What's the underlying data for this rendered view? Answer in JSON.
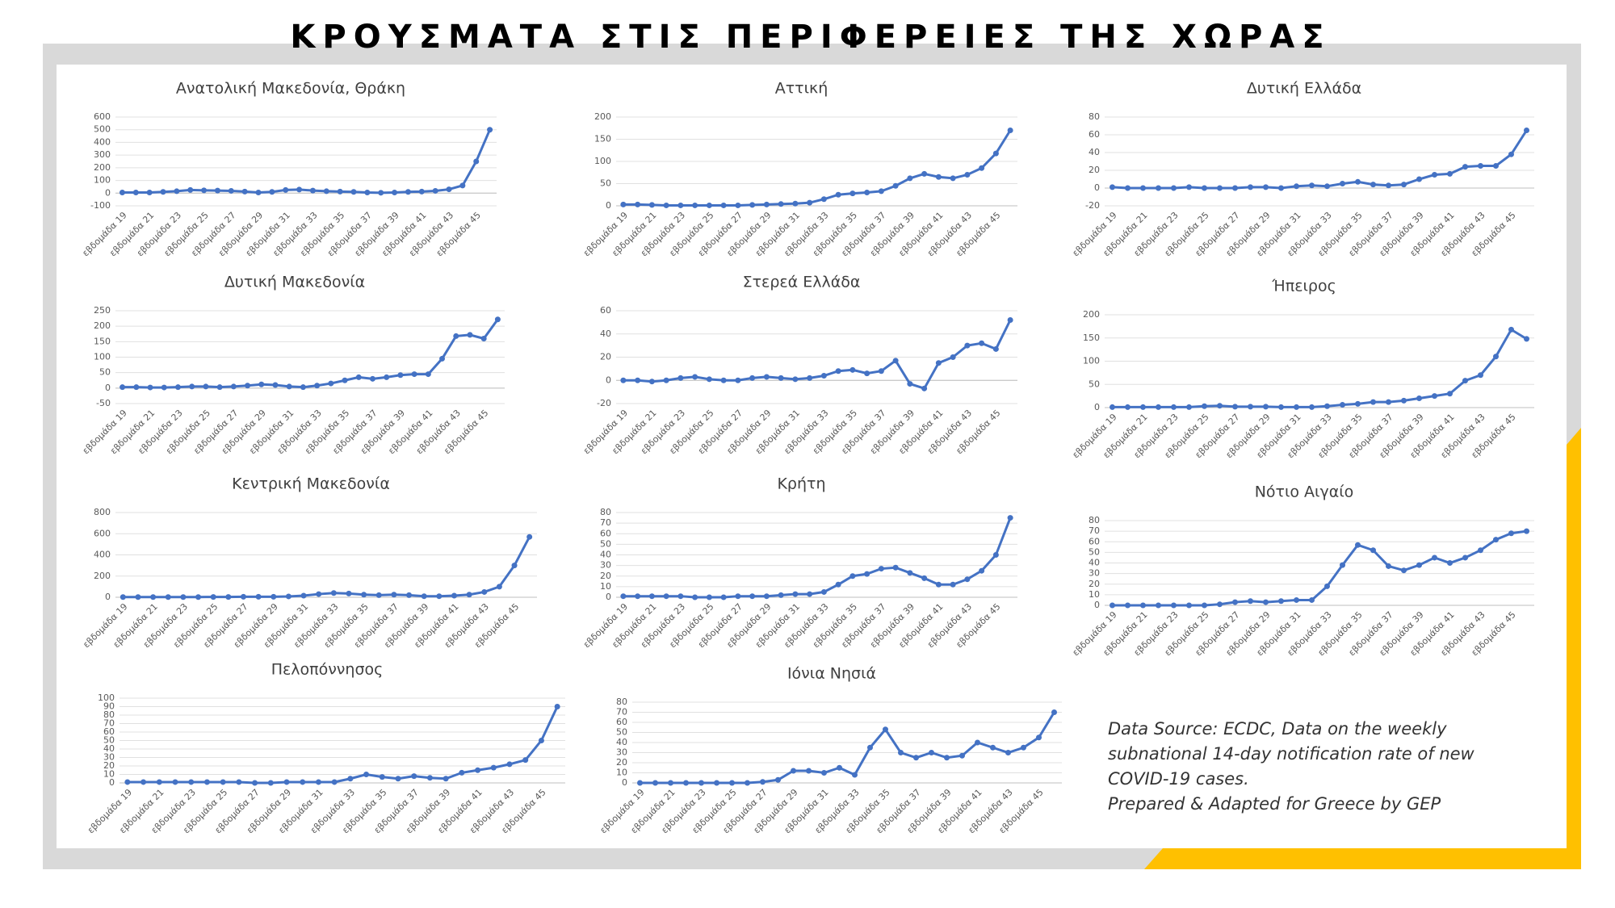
{
  "title": "ΚΡΟΥΣΜΑΤΑ ΣΤΙΣ ΠΕΡΙΦΕΡΕΙΕΣ ΤΗΣ ΧΩΡΑΣ",
  "note": [
    "Data Source: ECDC, Data on the weekly",
    "subnational 14-day notification rate of new",
    "COVID-19 cases.",
    "Prepared & Adapted for Greece by GEP"
  ],
  "chart_data": [
    {
      "type": "line",
      "title": "Ανατολική Μακεδονία, Θράκη",
      "color": "#4472c4",
      "grid": true,
      "categories": [
        "εβδομάδα 19",
        null,
        "εβδομάδα 21",
        null,
        "εβδομάδα 23",
        null,
        "εβδομάδα 25",
        null,
        "εβδομάδα 27",
        null,
        "εβδομάδα 29",
        null,
        "εβδομάδα 31",
        null,
        "εβδομάδα 33",
        null,
        "εβδομάδα 35",
        null,
        "εβδομάδα 37",
        null,
        "εβδομάδα 39",
        null,
        "εβδομάδα 41",
        null,
        "εβδομάδα 43",
        null,
        "εβδομάδα 45",
        null
      ],
      "values": [
        5,
        5,
        5,
        10,
        15,
        25,
        22,
        20,
        18,
        12,
        5,
        10,
        25,
        28,
        20,
        15,
        12,
        10,
        5,
        3,
        5,
        10,
        12,
        18,
        30,
        60,
        250,
        500
      ],
      "ylim": [
        -100,
        600
      ],
      "yticks": [
        -100,
        0,
        100,
        200,
        300,
        400,
        500,
        600
      ]
    },
    {
      "type": "line",
      "title": "Αττική",
      "color": "#4472c4",
      "grid": true,
      "categories": [
        "εβδομάδα 19",
        null,
        "εβδομάδα 21",
        null,
        "εβδομάδα 23",
        null,
        "εβδομάδα 25",
        null,
        "εβδομάδα 27",
        null,
        "εβδομάδα 29",
        null,
        "εβδομάδα 31",
        null,
        "εβδομάδα 33",
        null,
        "εβδομάδα 35",
        null,
        "εβδομάδα 37",
        null,
        "εβδομάδα 39",
        null,
        "εβδομάδα 41",
        null,
        "εβδομάδα 43",
        null,
        "εβδομάδα 45",
        null
      ],
      "values": [
        3,
        3,
        2,
        1,
        1,
        1,
        1,
        1,
        1,
        2,
        3,
        4,
        5,
        7,
        15,
        25,
        28,
        30,
        33,
        45,
        62,
        72,
        65,
        62,
        70,
        85,
        118,
        170
      ],
      "ylim": [
        0,
        200
      ],
      "yticks": [
        0,
        50,
        100,
        150,
        200
      ]
    },
    {
      "type": "line",
      "title": "Δυτική Ελλάδα",
      "color": "#4472c4",
      "grid": true,
      "categories": [
        "εβδομάδα 19",
        null,
        "εβδομάδα 21",
        null,
        "εβδομάδα 23",
        null,
        "εβδομάδα 25",
        null,
        "εβδομάδα 27",
        null,
        "εβδομάδα 29",
        null,
        "εβδομάδα 31",
        null,
        "εβδομάδα 33",
        null,
        "εβδομάδα 35",
        null,
        "εβδομάδα 37",
        null,
        "εβδομάδα 39",
        null,
        "εβδομάδα 41",
        null,
        "εβδομάδα 43",
        null,
        "εβδομάδα 45",
        null
      ],
      "values": [
        1,
        0,
        0,
        0,
        0,
        1,
        0,
        0,
        0,
        1,
        1,
        0,
        2,
        3,
        2,
        5,
        7,
        4,
        3,
        4,
        10,
        15,
        16,
        24,
        25,
        25,
        38,
        65
      ],
      "ylim": [
        -20,
        80
      ],
      "yticks": [
        -20,
        0,
        20,
        40,
        60,
        80
      ]
    },
    {
      "type": "line",
      "title": "Δυτική Μακεδονία",
      "color": "#4472c4",
      "grid": true,
      "categories": [
        "εβδομάδα 19",
        null,
        "εβδομάδα 21",
        null,
        "εβδομάδα 23",
        null,
        "εβδομάδα 25",
        null,
        "εβδομάδα 27",
        null,
        "εβδομάδα 29",
        null,
        "εβδομάδα 31",
        null,
        "εβδομάδα 33",
        null,
        "εβδομάδα 35",
        null,
        "εβδομάδα 37",
        null,
        "εβδομάδα 39",
        null,
        "εβδομάδα 41",
        null,
        "εβδομάδα 43",
        null,
        "εβδομάδα 45",
        null
      ],
      "values": [
        3,
        3,
        2,
        2,
        3,
        5,
        5,
        3,
        5,
        8,
        12,
        10,
        5,
        3,
        8,
        15,
        25,
        35,
        30,
        35,
        42,
        45,
        45,
        95,
        168,
        172,
        160,
        222
      ],
      "ylim": [
        -50,
        250
      ],
      "yticks": [
        -50,
        0,
        50,
        100,
        150,
        200,
        250
      ]
    },
    {
      "type": "line",
      "title": "Στερεά Ελλάδα",
      "color": "#4472c4",
      "grid": true,
      "categories": [
        "εβδομάδα 19",
        null,
        "εβδομάδα 21",
        null,
        "εβδομάδα 23",
        null,
        "εβδομάδα 25",
        null,
        "εβδομάδα 27",
        null,
        "εβδομάδα 29",
        null,
        "εβδομάδα 31",
        null,
        "εβδομάδα 33",
        null,
        "εβδομάδα 35",
        null,
        "εβδομάδα 37",
        null,
        "εβδομάδα 39",
        null,
        "εβδομάδα 41",
        null,
        "εβδομάδα 43",
        null,
        "εβδομάδα 45",
        null
      ],
      "values": [
        0,
        0,
        -1,
        0,
        2,
        3,
        1,
        0,
        0,
        2,
        3,
        2,
        1,
        2,
        4,
        8,
        9,
        6,
        8,
        17,
        -3,
        -7,
        15,
        20,
        30,
        32,
        27,
        52
      ],
      "ylim": [
        -20,
        60
      ],
      "yticks": [
        -20,
        0,
        20,
        40,
        60
      ]
    },
    {
      "type": "line",
      "title": "Ήπειρος",
      "color": "#4472c4",
      "grid": true,
      "categories": [
        "εβδομάδα 19",
        null,
        "εβδομάδα 21",
        null,
        "εβδομάδα 23",
        null,
        "εβδομάδα 25",
        null,
        "εβδομάδα 27",
        null,
        "εβδομάδα 29",
        null,
        "εβδομάδα 31",
        null,
        "εβδομάδα 33",
        null,
        "εβδομάδα 35",
        null,
        "εβδομάδα 37",
        null,
        "εβδομάδα 39",
        null,
        "εβδομάδα 41",
        null,
        "εβδομάδα 43",
        null,
        "εβδομάδα 45",
        null
      ],
      "values": [
        1,
        1,
        1,
        1,
        1,
        1,
        3,
        4,
        2,
        2,
        2,
        1,
        1,
        1,
        3,
        6,
        8,
        12,
        12,
        15,
        20,
        25,
        30,
        58,
        70,
        110,
        168,
        148
      ],
      "ylim": [
        0,
        200
      ],
      "yticks": [
        0,
        50,
        100,
        150,
        200
      ]
    },
    {
      "type": "line",
      "title": "Κεντρική Μακεδονία",
      "color": "#4472c4",
      "grid": true,
      "categories": [
        "εβδομάδα 19",
        null,
        "εβδομάδα 21",
        null,
        "εβδομάδα 23",
        null,
        "εβδομάδα 25",
        null,
        "εβδομάδα 27",
        null,
        "εβδομάδα 29",
        null,
        "εβδομάδα 31",
        null,
        "εβδομάδα 33",
        null,
        "εβδομάδα 35",
        null,
        "εβδομάδα 37",
        null,
        "εβδομάδα 39",
        null,
        "εβδομάδα 41",
        null,
        "εβδομάδα 43",
        null,
        "εβδομάδα 45",
        null
      ],
      "values": [
        2,
        2,
        2,
        2,
        2,
        2,
        3,
        3,
        5,
        5,
        5,
        8,
        15,
        30,
        40,
        35,
        25,
        20,
        25,
        20,
        10,
        10,
        15,
        25,
        50,
        100,
        300,
        570
      ],
      "ylim": [
        0,
        800
      ],
      "yticks": [
        0,
        200,
        400,
        600,
        800
      ]
    },
    {
      "type": "line",
      "title": "Κρήτη",
      "color": "#4472c4",
      "grid": true,
      "categories": [
        "εβδομάδα 19",
        null,
        "εβδομάδα 21",
        null,
        "εβδομάδα 23",
        null,
        "εβδομάδα 25",
        null,
        "εβδομάδα 27",
        null,
        "εβδομάδα 29",
        null,
        "εβδομάδα 31",
        null,
        "εβδομάδα 33",
        null,
        "εβδομάδα 35",
        null,
        "εβδομάδα 37",
        null,
        "εβδομάδα 39",
        null,
        "εβδομάδα 41",
        null,
        "εβδομάδα 43",
        null,
        "εβδομάδα 45",
        null
      ],
      "values": [
        1,
        1,
        1,
        1,
        1,
        0,
        0,
        0,
        1,
        1,
        1,
        2,
        3,
        3,
        5,
        12,
        20,
        22,
        27,
        28,
        23,
        18,
        12,
        12,
        17,
        25,
        40,
        75
      ],
      "ylim": [
        0,
        80
      ],
      "yticks": [
        0,
        10,
        20,
        30,
        40,
        50,
        60,
        70,
        80
      ]
    },
    {
      "type": "line",
      "title": "Νότιο Αιγαίο",
      "color": "#4472c4",
      "grid": true,
      "categories": [
        "εβδομάδα 19",
        null,
        "εβδομάδα 21",
        null,
        "εβδομάδα 23",
        null,
        "εβδομάδα 25",
        null,
        "εβδομάδα 27",
        null,
        "εβδομάδα 29",
        null,
        "εβδομάδα 31",
        null,
        "εβδομάδα 33",
        null,
        "εβδομάδα 35",
        null,
        "εβδομάδα 37",
        null,
        "εβδομάδα 39",
        null,
        "εβδομάδα 41",
        null,
        "εβδομάδα 43",
        null,
        "εβδομάδα 45",
        null
      ],
      "values": [
        0,
        0,
        0,
        0,
        0,
        0,
        0,
        1,
        3,
        4,
        3,
        4,
        5,
        5,
        18,
        38,
        57,
        52,
        37,
        33,
        38,
        45,
        40,
        45,
        52,
        62,
        68,
        70
      ],
      "ylim": [
        0,
        80
      ],
      "yticks": [
        0,
        10,
        20,
        30,
        40,
        50,
        60,
        70,
        80
      ]
    },
    {
      "type": "line",
      "title": "Πελοπόννησος",
      "color": "#4472c4",
      "grid": true,
      "categories": [
        "εβδομάδα 19",
        null,
        "εβδομάδα 21",
        null,
        "εβδομάδα 23",
        null,
        "εβδομάδα 25",
        null,
        "εβδομάδα 27",
        null,
        "εβδομάδα 29",
        null,
        "εβδομάδα 31",
        null,
        "εβδομάδα 33",
        null,
        "εβδομάδα 35",
        null,
        "εβδομάδα 37",
        null,
        "εβδομάδα 39",
        null,
        "εβδομάδα 41",
        null,
        "εβδομάδα 43",
        null,
        "εβδομάδα 45",
        null
      ],
      "values": [
        1,
        1,
        1,
        1,
        1,
        1,
        1,
        1,
        0,
        0,
        1,
        1,
        1,
        1,
        5,
        10,
        7,
        5,
        8,
        6,
        5,
        12,
        15,
        18,
        22,
        27,
        50,
        90
      ],
      "ylim": [
        0,
        100
      ],
      "yticks": [
        0,
        10,
        20,
        30,
        40,
        50,
        60,
        70,
        80,
        90,
        100
      ]
    },
    {
      "type": "line",
      "title": "Ιόνια Νησιά",
      "color": "#4472c4",
      "grid": true,
      "categories": [
        "εβδομάδα 19",
        null,
        "εβδομάδα 21",
        null,
        "εβδομάδα 23",
        null,
        "εβδομάδα 25",
        null,
        "εβδομάδα 27",
        null,
        "εβδομάδα 29",
        null,
        "εβδομάδα 31",
        null,
        "εβδομάδα 33",
        null,
        "εβδομάδα 35",
        null,
        "εβδομάδα 37",
        null,
        "εβδομάδα 39",
        null,
        "εβδομάδα 41",
        null,
        "εβδομάδα 43",
        null,
        "εβδομάδα 45",
        null
      ],
      "values": [
        0,
        0,
        0,
        0,
        0,
        0,
        0,
        0,
        1,
        3,
        12,
        12,
        10,
        15,
        8,
        35,
        53,
        30,
        25,
        30,
        25,
        27,
        40,
        35,
        30,
        35,
        45,
        70
      ],
      "ylim": [
        0,
        80
      ],
      "yticks": [
        0,
        10,
        20,
        30,
        40,
        50,
        60,
        70,
        80
      ]
    }
  ]
}
